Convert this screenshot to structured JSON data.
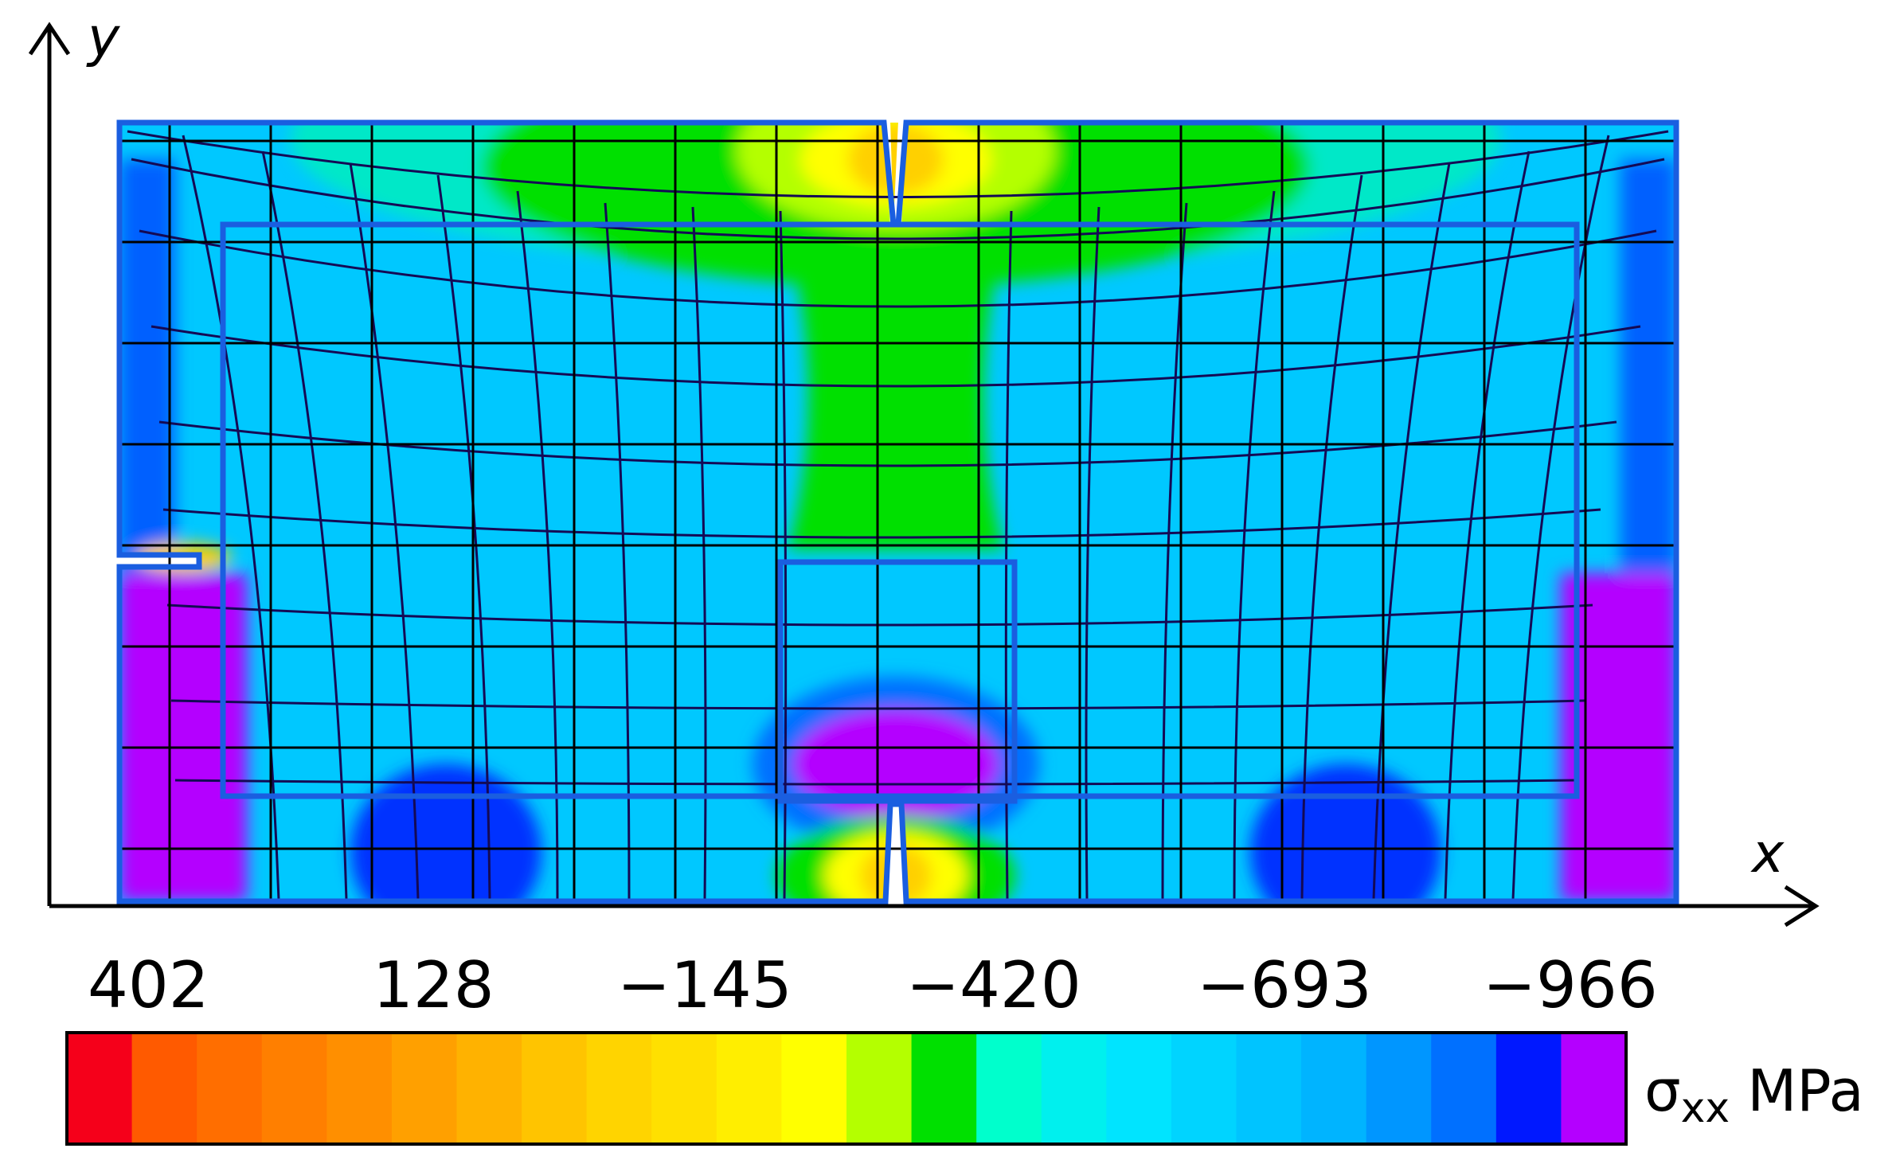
{
  "axes": {
    "x_label": "x",
    "y_label": "y"
  },
  "colorbar": {
    "tick_labels": [
      "402",
      "128",
      "−145",
      "−420",
      "−693",
      "−966"
    ],
    "quantity_symbol": "σ",
    "quantity_subscript": "xx",
    "unit": "MPa",
    "colors": [
      "#f5001a",
      "#ff5a00",
      "#ff6e00",
      "#ff7f00",
      "#ff8f00",
      "#ffa000",
      "#ffb200",
      "#ffc400",
      "#ffd400",
      "#ffe000",
      "#ffee00",
      "#ffff00",
      "#b4ff00",
      "#00e000",
      "#00ffcc",
      "#00f0ee",
      "#00e4ff",
      "#00d4ff",
      "#00c4ff",
      "#00b4ff",
      "#0096ff",
      "#0070ff",
      "#0018ff",
      "#b400ff"
    ]
  },
  "colors": {
    "background": "#00c8ff",
    "outline": "#1a5ee0",
    "grid": "#000000",
    "deformed_grid": "#140a55",
    "tension_peak": "#ffd000",
    "compression_zone": "#c000ff"
  }
}
